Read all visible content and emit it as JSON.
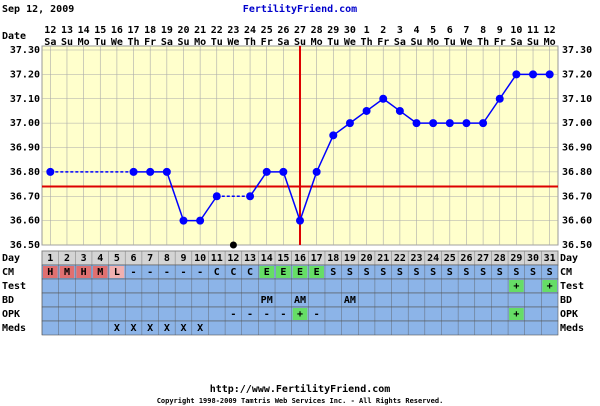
{
  "header": {
    "date": "Sep 12, 2009",
    "site": "FertilityFriend.com"
  },
  "chart_data": {
    "type": "line",
    "date_label": "Date",
    "dates": [
      "12",
      "13",
      "14",
      "15",
      "16",
      "17",
      "18",
      "19",
      "20",
      "21",
      "22",
      "23",
      "24",
      "25",
      "26",
      "27",
      "28",
      "29",
      "30",
      "1",
      "2",
      "3",
      "4",
      "5",
      "6",
      "7",
      "8",
      "9",
      "10",
      "11",
      "12"
    ],
    "weekdays": [
      "Sa",
      "Su",
      "Mo",
      "Tu",
      "We",
      "Th",
      "Fr",
      "Sa",
      "Su",
      "Mo",
      "Tu",
      "We",
      "Th",
      "Fr",
      "Sa",
      "Su",
      "Mo",
      "Tu",
      "We",
      "Th",
      "Fr",
      "Sa",
      "Su",
      "Mo",
      "Tu",
      "We",
      "Th",
      "Fr",
      "Sa",
      "Su",
      "Mo"
    ],
    "day_label": "Day",
    "days": [
      1,
      2,
      3,
      4,
      5,
      6,
      7,
      8,
      9,
      10,
      11,
      12,
      13,
      14,
      15,
      16,
      17,
      18,
      19,
      20,
      21,
      22,
      23,
      24,
      25,
      26,
      27,
      28,
      29,
      30,
      31
    ],
    "values": [
      36.8,
      null,
      null,
      null,
      null,
      36.8,
      36.8,
      36.8,
      36.6,
      36.6,
      36.7,
      null,
      36.7,
      36.8,
      36.8,
      36.6,
      36.8,
      36.95,
      37.0,
      37.05,
      37.1,
      37.05,
      37.0,
      37.0,
      37.0,
      37.0,
      37.0,
      37.1,
      37.2,
      37.2,
      37.2
    ],
    "discarded_values": [
      null,
      null,
      null,
      null,
      null,
      null,
      null,
      null,
      null,
      null,
      null,
      36.5,
      null,
      null,
      null,
      null,
      null,
      null,
      null,
      null,
      null,
      null,
      null,
      null,
      null,
      null,
      null,
      null,
      null,
      null,
      null
    ],
    "color": "#0000ff",
    "coverline": 36.74,
    "ovulation_day": 16,
    "ylim": [
      36.5,
      37.3
    ],
    "yticks": [
      {
        "value": 36.5,
        "label": "36.50"
      },
      {
        "value": 36.6,
        "label": "36.60"
      },
      {
        "value": 36.7,
        "label": "36.70"
      },
      {
        "value": 36.8,
        "label": "36.80"
      },
      {
        "value": 36.9,
        "label": "36.90"
      },
      {
        "value": 37.0,
        "label": "37.00"
      },
      {
        "value": 37.1,
        "label": "37.10"
      },
      {
        "value": 37.2,
        "label": "37.20"
      },
      {
        "value": 37.3,
        "label": "37.30"
      }
    ],
    "grid": true,
    "rows": [
      {
        "label": "CM",
        "cells": [
          "H",
          "M",
          "H",
          "M",
          "L",
          "-",
          "-",
          "-",
          "-",
          "-",
          "C",
          "C",
          "C",
          "E",
          "E",
          "E",
          "E",
          "S",
          "S",
          "S",
          "S",
          "S",
          "S",
          "S",
          "S",
          "S",
          "S",
          "S",
          "S",
          "S",
          "S"
        ]
      },
      {
        "label": "Test",
        "cells": [
          null,
          null,
          null,
          null,
          null,
          null,
          null,
          null,
          null,
          null,
          null,
          null,
          null,
          null,
          null,
          null,
          null,
          null,
          null,
          null,
          null,
          null,
          null,
          null,
          null,
          null,
          null,
          null,
          "+",
          null,
          "+"
        ]
      },
      {
        "label": "BD",
        "cells": [
          null,
          null,
          null,
          null,
          null,
          null,
          null,
          null,
          null,
          null,
          null,
          null,
          null,
          "PM",
          null,
          "AM",
          null,
          null,
          "AM",
          null,
          null,
          null,
          null,
          null,
          null,
          null,
          null,
          null,
          null,
          null,
          null
        ]
      },
      {
        "label": "OPK",
        "cells": [
          null,
          null,
          null,
          null,
          null,
          null,
          null,
          null,
          null,
          null,
          null,
          "-",
          "-",
          "-",
          "-",
          "+",
          "-",
          null,
          null,
          null,
          null,
          null,
          null,
          null,
          null,
          null,
          null,
          null,
          "+",
          null,
          null
        ]
      },
      {
        "label": "Meds",
        "cells": [
          null,
          null,
          null,
          null,
          "X",
          "X",
          "X",
          "X",
          "X",
          "X",
          null,
          null,
          null,
          null,
          null,
          null,
          null,
          null,
          null,
          null,
          null,
          null,
          null,
          null,
          null,
          null,
          null,
          null,
          null,
          null,
          null
        ]
      }
    ]
  },
  "footer": {
    "url": "http://www.FertilityFriend.com",
    "copyright": "Copyright 1998-2009 Tamtris Web Services Inc. - All Rights Reserved."
  }
}
